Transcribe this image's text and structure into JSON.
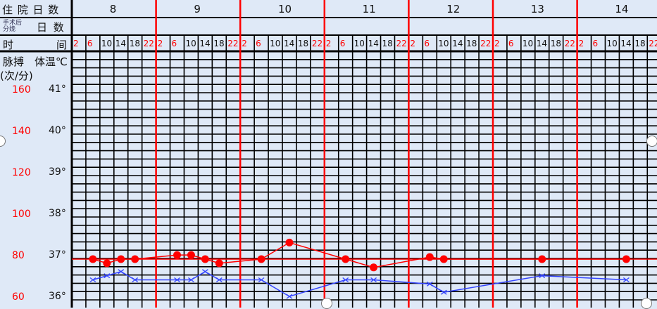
{
  "header": {
    "hospital_days_label": "住 院 日 数",
    "postop_label_top": "手术后",
    "postop_label_bottom": "分娩",
    "postop_days_label": "日 数",
    "time_label_left": "时",
    "time_label_right": "间",
    "pulse_label": "脉搏",
    "temp_label": "体温℃",
    "pulse_unit": "(次/分)"
  },
  "days": [
    "8",
    "9",
    "10",
    "11",
    "12",
    "13",
    "14"
  ],
  "time_slots": [
    "2",
    "6",
    "10",
    "14",
    "18",
    "22"
  ],
  "pulse_ticks": [
    "160",
    "140",
    "120",
    "100",
    "80",
    "60"
  ],
  "temp_ticks": [
    "41°",
    "40°",
    "39°",
    "38°",
    "37°",
    "36°"
  ],
  "colors": {
    "background": "#dfe9f7",
    "pulse": "#ff0000",
    "temperature": "#3344ff",
    "day_divider": "#ff0000",
    "night_time": "#ff0000"
  },
  "chart_data": {
    "type": "line",
    "temp_range": [
      36,
      41
    ],
    "pulse_range": [
      60,
      160
    ],
    "reference_line_temp": 37,
    "series": [
      {
        "marker": "circle",
        "axis": "pulse",
        "points": [
          [
            "8",
            "6",
            80
          ],
          [
            "8",
            "10",
            78
          ],
          [
            "8",
            "14",
            80
          ],
          [
            "8",
            "18",
            80
          ],
          [
            "9",
            "6",
            82
          ],
          [
            "9",
            "10",
            82
          ],
          [
            "9",
            "14",
            80
          ],
          [
            "9",
            "18",
            78
          ],
          [
            "10",
            "6",
            80
          ],
          [
            "10",
            "14",
            88
          ],
          [
            "11",
            "6",
            80
          ],
          [
            "11",
            "14",
            76
          ],
          [
            "12",
            "6",
            81
          ],
          [
            "12",
            "10",
            80
          ],
          [
            "13",
            "14",
            80
          ],
          [
            "14",
            "14",
            80
          ]
        ]
      },
      {
        "marker": "x",
        "axis": "temperature",
        "points": [
          [
            "8",
            "6",
            36.5
          ],
          [
            "8",
            "10",
            36.6
          ],
          [
            "8",
            "14",
            36.7
          ],
          [
            "8",
            "18",
            36.5
          ],
          [
            "9",
            "6",
            36.5
          ],
          [
            "9",
            "10",
            36.5
          ],
          [
            "9",
            "14",
            36.7
          ],
          [
            "9",
            "18",
            36.5
          ],
          [
            "10",
            "6",
            36.5
          ],
          [
            "10",
            "14",
            36.1
          ],
          [
            "11",
            "6",
            36.5
          ],
          [
            "11",
            "14",
            36.5
          ],
          [
            "12",
            "6",
            36.4
          ],
          [
            "12",
            "10",
            36.2
          ],
          [
            "13",
            "14",
            36.6
          ],
          [
            "14",
            "14",
            36.5
          ]
        ]
      }
    ]
  }
}
